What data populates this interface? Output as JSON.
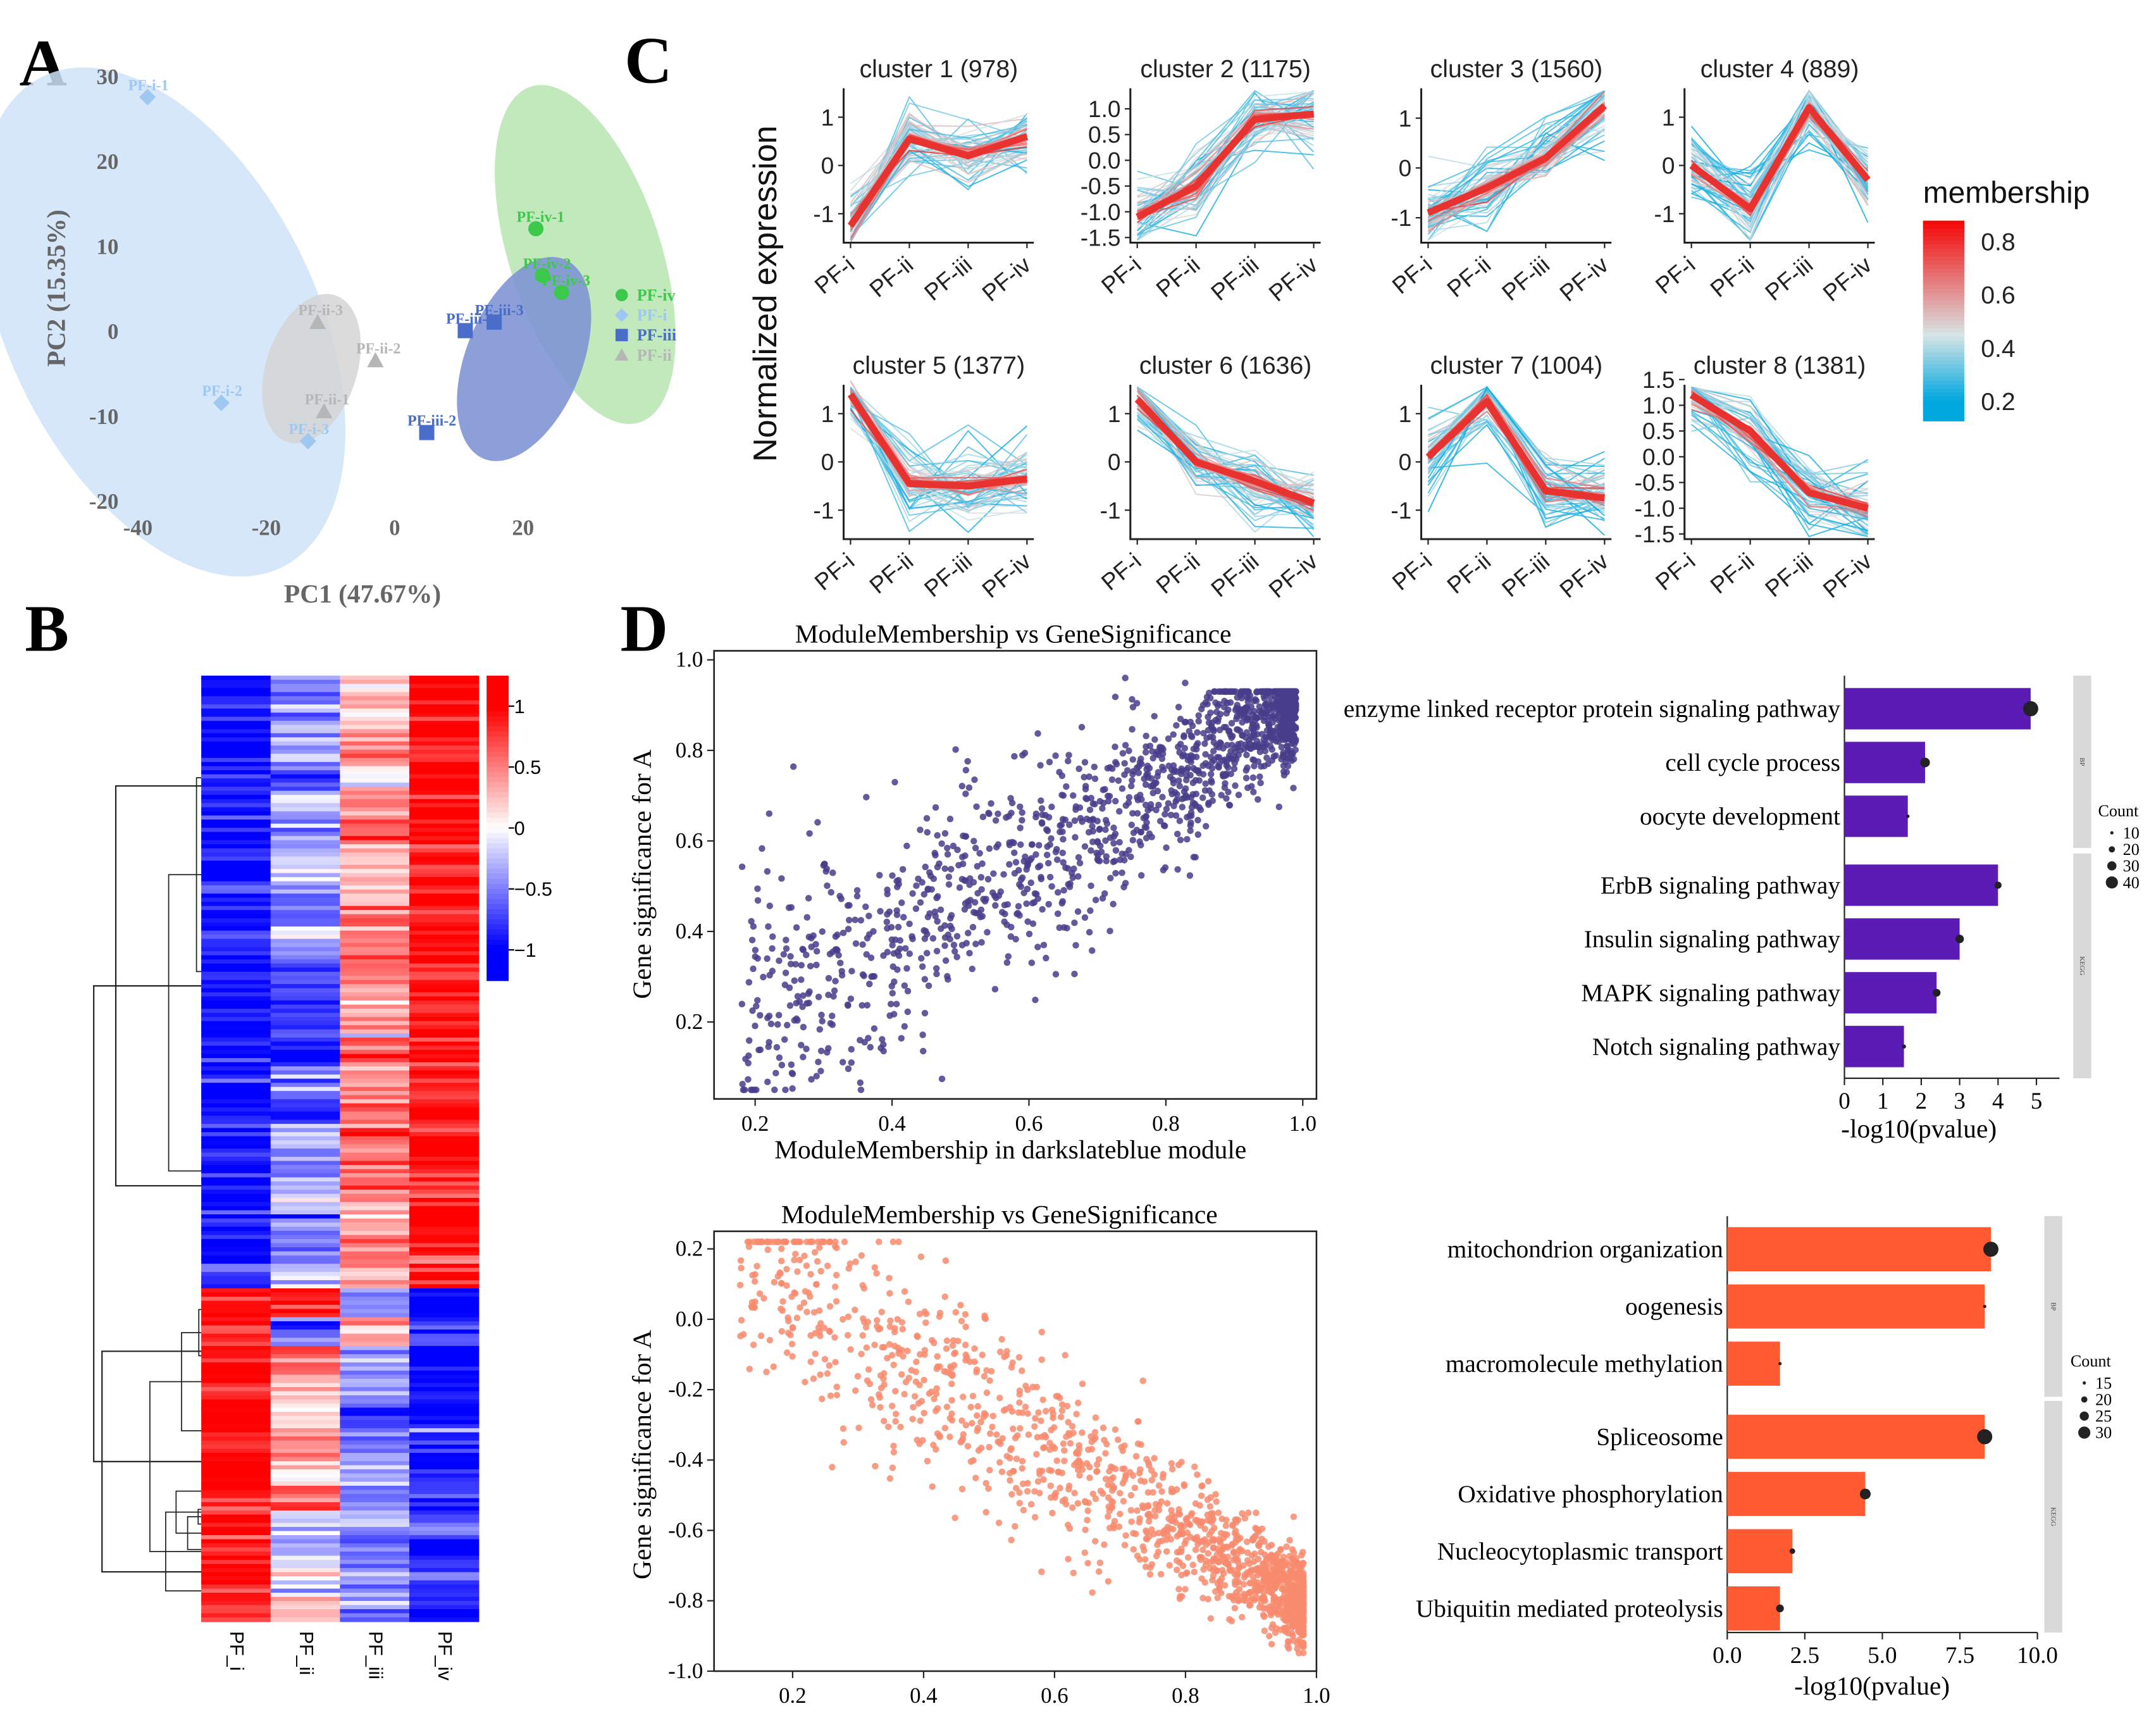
{
  "figure": {
    "panel_labels": [
      "A",
      "B",
      "C",
      "D"
    ]
  },
  "pca": {
    "xlabel": "PC1 (47.67%)",
    "ylabel": "PC2 (15.35%)",
    "xticks": [
      -40,
      -20,
      0,
      20
    ],
    "yticks": [
      30,
      20,
      10,
      0,
      -10,
      -20
    ],
    "xlim": [
      -40,
      30
    ],
    "ylim": [
      -20,
      30
    ],
    "groups": [
      {
        "name": "PF-iv",
        "color": "#3cc84a",
        "ellipse_color": "#b7e5b0",
        "marker": "circle",
        "points": [
          {
            "label": "PF-iv-1",
            "x": 22,
            "y": 12
          },
          {
            "label": "PF-iv-2",
            "x": 23,
            "y": 6.5
          },
          {
            "label": "PF-iv-3",
            "x": 26,
            "y": 4.5
          }
        ]
      },
      {
        "name": "PF-i",
        "color": "#9ec8f2",
        "ellipse_color": "#cfe3f9",
        "marker": "diamond",
        "points": [
          {
            "label": "PF-i-1",
            "x": -38.5,
            "y": 27.5
          },
          {
            "label": "PF-i-2",
            "x": -27,
            "y": -8.5
          },
          {
            "label": "PF-i-3",
            "x": -13.5,
            "y": -13
          }
        ]
      },
      {
        "name": "PF-iii",
        "color": "#4a6dc9",
        "ellipse_color": "#7f95d4",
        "marker": "square",
        "points": [
          {
            "label": "PF-iii-1",
            "x": 11,
            "y": 0
          },
          {
            "label": "PF-iii-2",
            "x": 5,
            "y": -12
          },
          {
            "label": "PF-iii-3",
            "x": 15.5,
            "y": 1
          }
        ]
      },
      {
        "name": "PF-ii",
        "color": "#b6b6b6",
        "ellipse_color": "#d5d5d5",
        "marker": "triangle",
        "points": [
          {
            "label": "PF-ii-1",
            "x": -11,
            "y": -9.5
          },
          {
            "label": "PF-ii-2",
            "x": -3,
            "y": -3.5
          },
          {
            "label": "PF-ii-3",
            "x": -12,
            "y": 1
          }
        ]
      }
    ]
  },
  "heatmap": {
    "columns": [
      "PF_i",
      "PF_ii",
      "PF_iii",
      "PF_iv"
    ],
    "colorbar_ticks": [
      "1",
      "0.5",
      "0",
      "−0.5",
      "−1"
    ],
    "colorbar_values": [
      1,
      0.5,
      0,
      -0.5,
      -1
    ],
    "rows": [
      [
        -1.0,
        -0.5,
        0.3,
        1.0
      ],
      [
        -0.9,
        -0.3,
        0.2,
        1.0
      ],
      [
        -1.0,
        -0.4,
        0.5,
        0.9
      ],
      [
        -0.8,
        -0.6,
        0.1,
        1.0
      ],
      [
        -1.0,
        -0.2,
        0.4,
        0.9
      ],
      [
        -0.9,
        -0.5,
        0.6,
        1.0
      ],
      [
        -1.0,
        -0.3,
        0.2,
        0.8
      ],
      [
        -0.8,
        -0.4,
        0.3,
        1.0
      ],
      [
        -1.0,
        -0.6,
        0.5,
        0.9
      ],
      [
        -0.9,
        -0.2,
        0.4,
        1.0
      ],
      [
        -1.0,
        -0.7,
        0.6,
        0.9
      ],
      [
        -0.8,
        -0.8,
        0.4,
        1.0
      ],
      [
        -1.0,
        -0.7,
        0.3,
        0.9
      ],
      [
        -0.9,
        -0.9,
        0.6,
        1.0
      ],
      [
        -1.0,
        -0.5,
        0.4,
        0.8
      ],
      [
        -0.9,
        -0.8,
        0.5,
        1.0
      ],
      [
        -1.0,
        -0.3,
        0.6,
        0.9
      ],
      [
        -0.8,
        -0.4,
        0.5,
        1.0
      ],
      [
        -1.0,
        -0.2,
        0.6,
        0.8
      ],
      [
        -0.9,
        -0.4,
        0.3,
        1.0
      ],
      [
        -1.0,
        -0.5,
        0.6,
        0.9
      ],
      [
        -0.8,
        -0.3,
        0.4,
        1.0
      ],
      [
        0.9,
        0.9,
        -0.5,
        -1.0
      ],
      [
        0.8,
        -0.7,
        0.3,
        -0.8
      ],
      [
        1.0,
        0.5,
        -0.3,
        -1.0
      ],
      [
        0.9,
        0.3,
        -0.4,
        -0.9
      ],
      [
        1.0,
        0.2,
        -0.6,
        -1.0
      ],
      [
        0.9,
        0.4,
        -0.5,
        -0.8
      ],
      [
        1.0,
        0.1,
        -0.3,
        -1.0
      ],
      [
        0.8,
        0.6,
        -0.5,
        -0.9
      ],
      [
        1.0,
        -0.2,
        -0.4,
        -0.8
      ],
      [
        0.9,
        -0.3,
        -0.6,
        -1.0
      ],
      [
        1.0,
        -0.1,
        -0.3,
        -0.7
      ],
      [
        0.9,
        0.2,
        -0.5,
        -0.9
      ]
    ]
  },
  "clusters": {
    "ylabel": "Normalized expression",
    "xticks": [
      "PF-i",
      "PF-ii",
      "PF-iii",
      "PF-iv"
    ],
    "legend_title": "membership",
    "legend_ticks": [
      "0.8",
      "0.6",
      "0.4",
      "0.2"
    ],
    "legend_values": [
      0.8,
      0.6,
      0.4,
      0.2
    ],
    "panels": [
      {
        "title": "cluster 1 (978)",
        "ylim": [
          -1.6,
          1.6
        ],
        "yticks": [
          "1",
          "0",
          "-1"
        ],
        "ytick_values": [
          1,
          0,
          -1
        ],
        "center": [
          -1.25,
          0.55,
          0.2,
          0.6
        ]
      },
      {
        "title": "cluster 2 (1175)",
        "ylim": [
          -1.6,
          1.4
        ],
        "yticks": [
          "1.0",
          "0.5",
          "0.0",
          "-0.5",
          "-1.0",
          "-1.5"
        ],
        "ytick_values": [
          1.0,
          0.5,
          0.0,
          -0.5,
          -1.0,
          -1.5
        ],
        "center": [
          -1.1,
          -0.5,
          0.8,
          0.9
        ]
      },
      {
        "title": "cluster 3 (1560)",
        "ylim": [
          -1.5,
          1.6
        ],
        "yticks": [
          "1",
          "0",
          "-1"
        ],
        "ytick_values": [
          1,
          0,
          -1
        ],
        "center": [
          -0.9,
          -0.4,
          0.2,
          1.25
        ]
      },
      {
        "title": "cluster 4 (889)",
        "ylim": [
          -1.6,
          1.6
        ],
        "yticks": [
          "1",
          "0",
          "-1"
        ],
        "ytick_values": [
          1,
          0,
          -1
        ],
        "center": [
          0,
          -0.9,
          1.2,
          -0.3
        ]
      },
      {
        "title": "cluster 5 (1377)",
        "ylim": [
          -1.6,
          1.6
        ],
        "yticks": [
          "1",
          "0",
          "-1"
        ],
        "ytick_values": [
          1,
          0,
          -1
        ],
        "center": [
          1.4,
          -0.45,
          -0.5,
          -0.35
        ]
      },
      {
        "title": "cluster 6 (1636)",
        "ylim": [
          -1.6,
          1.6
        ],
        "yticks": [
          "1",
          "0",
          "-1"
        ],
        "ytick_values": [
          1,
          0,
          -1
        ],
        "center": [
          1.3,
          0,
          -0.4,
          -0.85
        ]
      },
      {
        "title": "cluster 7 (1004)",
        "ylim": [
          -1.6,
          1.6
        ],
        "yticks": [
          "1",
          "0",
          "-1"
        ],
        "ytick_values": [
          1,
          0,
          -1
        ],
        "center": [
          0.1,
          1.25,
          -0.6,
          -0.75
        ]
      },
      {
        "title": "cluster 8 (1381)",
        "ylim": [
          -1.6,
          1.4
        ],
        "yticks": [
          "1.5",
          "1.0",
          "0.5",
          "0.0",
          "-0.5",
          "-1.0",
          "-1.5"
        ],
        "ytick_values": [
          1.5,
          1.0,
          0.5,
          0.0,
          -0.5,
          -1.0,
          -1.5
        ],
        "center": [
          1.2,
          0.5,
          -0.7,
          -1.0
        ]
      }
    ]
  },
  "mm_top": {
    "title": "ModuleMembership vs GeneSignificance",
    "xlabel": "ModuleMembership in darkslateblue module",
    "ylabel": "Gene significance for A",
    "xticks": [
      "0.2",
      "0.4",
      "0.6",
      "0.8",
      "1.0"
    ],
    "xtick_values": [
      0.2,
      0.4,
      0.6,
      0.8,
      1.0
    ],
    "yticks": [
      "1.0",
      "0.8",
      "0.6",
      "0.4",
      "0.2"
    ],
    "ytick_values": [
      1.0,
      0.8,
      0.6,
      0.4,
      0.2
    ],
    "xlim": [
      0.14,
      1.02
    ],
    "ylim": [
      0.03,
      1.02
    ],
    "color": "#483d8b",
    "n_points": 1600,
    "trend": "positive"
  },
  "mm_bottom": {
    "title": "ModuleMembership vs GeneSignificance",
    "xlabel": "",
    "ylabel": "Gene significance for A",
    "xticks": [
      "0.2",
      "0.4",
      "0.6",
      "0.8",
      "1.0"
    ],
    "xtick_values": [
      0.2,
      0.4,
      0.6,
      0.8,
      1.0
    ],
    "yticks": [
      "0.2",
      "0.0",
      "-0.2",
      "-0.4",
      "-0.6",
      "-0.8",
      "-1.0"
    ],
    "ytick_values": [
      0.2,
      0.0,
      -0.2,
      -0.4,
      -0.6,
      -0.8,
      -1.0
    ],
    "xlim": [
      0.08,
      1.0
    ],
    "ylim": [
      -1.0,
      0.25
    ],
    "color": "#f88b6e",
    "n_points": 1500,
    "trend": "negative"
  },
  "bar_top": {
    "xlabel": "-log10(pvalue)",
    "xticks": [
      "0",
      "1",
      "2",
      "3",
      "4",
      "5"
    ],
    "xtick_values": [
      0,
      1,
      2,
      3,
      4,
      5
    ],
    "xlim": [
      0,
      5.6
    ],
    "color": "#5b1cb5",
    "facets": [
      "BP",
      "KEGG"
    ],
    "legend_title": "Count",
    "legend_labels": [
      "10",
      "20",
      "30",
      "40"
    ],
    "legend_values": [
      10,
      20,
      30,
      40
    ],
    "groups": [
      [
        {
          "term": "enzyme linked receptor protein signaling pathway",
          "value": 4.85,
          "count": 40
        },
        {
          "term": "cell cycle process",
          "value": 2.1,
          "count": 25
        },
        {
          "term": "oocyte development",
          "value": 1.65,
          "count": 8
        }
      ],
      [
        {
          "term": "ErbB signaling pathway",
          "value": 4.0,
          "count": 18
        },
        {
          "term": "Insulin signaling pathway",
          "value": 3.0,
          "count": 22
        },
        {
          "term": "MAPK signaling pathway",
          "value": 2.4,
          "count": 20
        },
        {
          "term": "Notch signaling pathway",
          "value": 1.55,
          "count": 10
        }
      ]
    ]
  },
  "bar_bottom": {
    "xlabel": "-log10(pvalue)",
    "xticks": [
      "0.0",
      "2.5",
      "5.0",
      "7.5",
      "10.0"
    ],
    "xtick_values": [
      0,
      2.5,
      5,
      7.5,
      10
    ],
    "xlim": [
      0,
      10
    ],
    "color": "#ff5a32",
    "facets": [
      "BP",
      "KEGG"
    ],
    "legend_title": "Count",
    "legend_labels": [
      "15",
      "20",
      "25",
      "30"
    ],
    "legend_values": [
      15,
      20,
      25,
      30
    ],
    "groups": [
      [
        {
          "term": "mitochondrion organization",
          "value": 8.5,
          "count": 30
        },
        {
          "term": "oogenesis",
          "value": 8.3,
          "count": 12
        },
        {
          "term": "macromolecule methylation",
          "value": 1.7,
          "count": 12
        }
      ],
      [
        {
          "term": "Spliceosome",
          "value": 8.3,
          "count": 30
        },
        {
          "term": "Oxidative phosphorylation",
          "value": 4.45,
          "count": 24
        },
        {
          "term": "Nucleocytoplasmic transport",
          "value": 2.1,
          "count": 17
        },
        {
          "term": "Ubiquitin mediated proteolysis",
          "value": 1.7,
          "count": 20
        }
      ]
    ]
  }
}
